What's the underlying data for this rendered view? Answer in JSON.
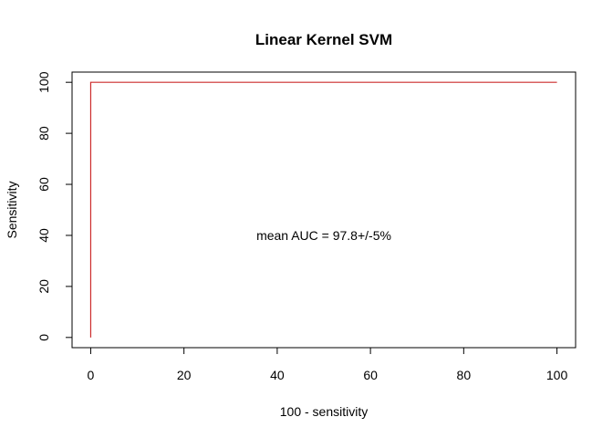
{
  "chart_data": {
    "type": "line",
    "title": "Linear Kernel SVM",
    "xlabel": "100 - sensitivity",
    "ylabel": "Sensitivity",
    "xlim": [
      -4,
      104
    ],
    "ylim": [
      -4,
      104
    ],
    "x_ticks": [
      0,
      20,
      40,
      60,
      80,
      100
    ],
    "y_ticks": [
      0,
      20,
      40,
      60,
      80,
      100
    ],
    "grid": false,
    "series": [
      {
        "color": "#cc2b2b",
        "points": [
          [
            0,
            0
          ],
          [
            0,
            100
          ],
          [
            100,
            100
          ]
        ]
      }
    ],
    "annotations": [
      {
        "text": "mean AUC = 97.8+/-5%",
        "x": 50,
        "y": 40
      }
    ]
  }
}
